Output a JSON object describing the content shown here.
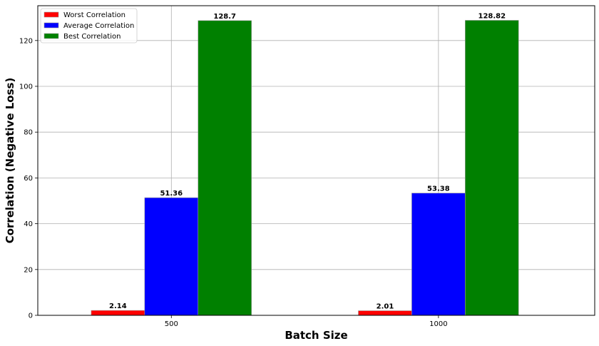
{
  "chart_data": {
    "type": "bar",
    "title": "",
    "xlabel": "Batch Size",
    "ylabel": "Correlation (Negative Loss)",
    "categories": [
      "500",
      "1000"
    ],
    "series": [
      {
        "name": "Worst Correlation",
        "values": [
          2.14,
          2.01
        ],
        "color": "#ff0000"
      },
      {
        "name": "Average Correlation",
        "values": [
          51.36,
          53.38
        ],
        "color": "#0000ff"
      },
      {
        "name": "Best Correlation",
        "values": [
          128.7,
          128.82
        ],
        "color": "#008000"
      }
    ],
    "data_labels": [
      [
        "2.14",
        "2.01"
      ],
      [
        "51.36",
        "53.38"
      ],
      [
        "128.7",
        "128.82"
      ]
    ],
    "ylim": [
      0,
      135.2
    ],
    "yticks": [
      0,
      20,
      40,
      60,
      80,
      100,
      120
    ],
    "grid": true,
    "legend_position": "top-left"
  }
}
